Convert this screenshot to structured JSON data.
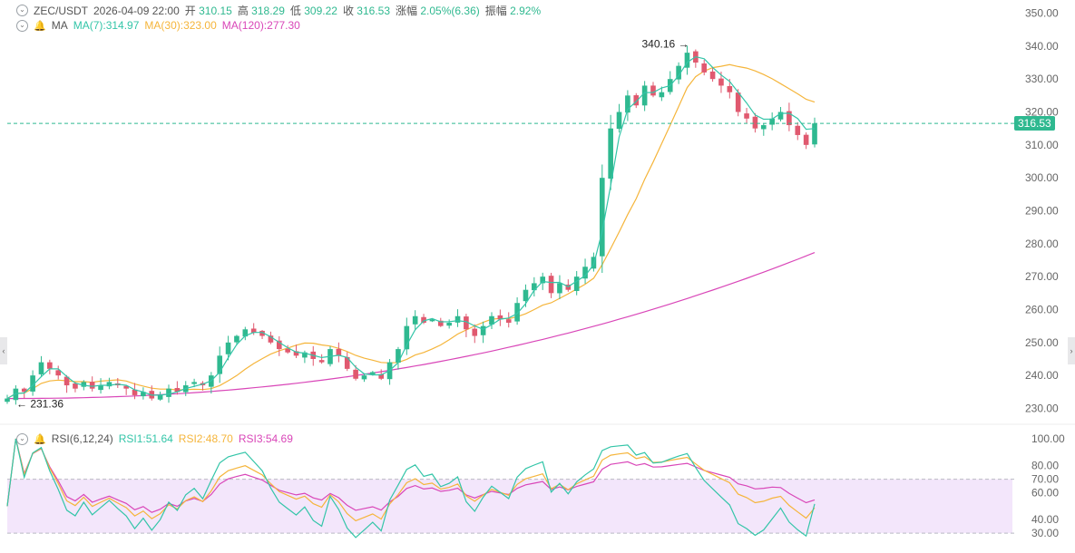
{
  "header": {
    "pair": "ZEC/USDT",
    "datetime": "2026-04-09 22:00",
    "open_label": "开",
    "open": "310.15",
    "high_label": "高",
    "high": "318.29",
    "low_label": "低",
    "low": "309.22",
    "close_label": "收",
    "close": "316.53",
    "change_label": "涨幅",
    "change": "2.05%(6.36)",
    "amp_label": "振幅",
    "amp": "2.92%"
  },
  "ma_legend": {
    "label": "MA",
    "ma7": "MA(7):314.97",
    "ma30": "MA(30):323.00",
    "ma120": "MA(120):277.30"
  },
  "rsi_legend": {
    "label": "RSI(6,12,24)",
    "rsi1": "RSI1:51.64",
    "rsi2": "RSI2:48.70",
    "rsi3": "RSI3:54.69"
  },
  "annotations": {
    "high": "340.16",
    "low": "231.36"
  },
  "current_price": "316.53",
  "colors": {
    "up": "#2fb990",
    "down": "#e0596f",
    "ma7": "#33c5a8",
    "ma30": "#f5b53b",
    "ma120": "#d946b8",
    "rsi_band": "#f3e6fb"
  },
  "chart_data": [
    {
      "type": "candlestick",
      "title": "ZEC/USDT",
      "ylim": [
        226,
        354
      ],
      "y_ticks": [
        "350.00",
        "340.00",
        "330.00",
        "320.00",
        "310.00",
        "300.00",
        "290.00",
        "280.00",
        "270.00",
        "260.00",
        "250.00",
        "240.00",
        "230.00"
      ],
      "y_tick_values": [
        350,
        340,
        330,
        320,
        310,
        300,
        290,
        280,
        270,
        260,
        250,
        240,
        230
      ],
      "close_path": [
        233,
        236,
        235,
        240,
        244,
        242,
        240,
        237,
        236,
        238,
        236,
        237,
        238,
        237,
        236,
        234,
        235,
        233,
        234,
        236,
        235,
        237,
        238,
        237,
        240,
        246,
        250,
        252,
        254,
        253,
        252,
        250,
        248,
        247,
        246,
        247,
        245,
        244,
        248,
        246,
        242,
        239,
        240,
        241,
        239,
        244,
        248,
        255,
        258,
        256,
        257,
        255,
        256,
        258,
        254,
        252,
        255,
        258,
        257,
        256,
        262,
        266,
        268,
        270,
        265,
        268,
        266,
        270,
        273,
        276,
        300,
        315,
        320,
        325,
        322,
        328,
        325,
        326,
        330,
        334,
        338,
        335,
        332,
        330,
        328,
        326,
        320,
        318,
        315,
        316,
        318,
        320,
        316,
        313,
        310,
        316.53
      ],
      "ma7_final": 314.97,
      "ma30_final": 323.0,
      "ma120_final": 277.3
    },
    {
      "type": "line",
      "title": "RSI(6,12,24)",
      "ylim": [
        22,
        104
      ],
      "y_ticks": [
        "100.00",
        "80.00",
        "70.00",
        "60.00",
        "40.00",
        "30.00"
      ],
      "y_tick_values": [
        100,
        80,
        70,
        60,
        40,
        30
      ],
      "band": [
        30,
        70
      ],
      "series": [
        {
          "name": "RSI1",
          "final": 51.64
        },
        {
          "name": "RSI2",
          "final": 48.7
        },
        {
          "name": "RSI3",
          "final": 54.69
        }
      ]
    }
  ]
}
